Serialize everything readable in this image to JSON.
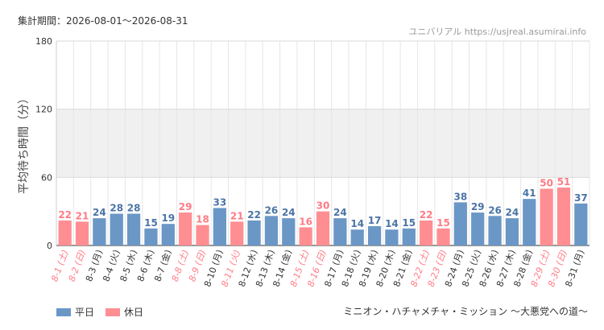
{
  "header": {
    "period": "集計期間：2026-08-01～2026-08-31",
    "site": "ユニバリアル  https://usjreal.asumirai.info"
  },
  "footer": {
    "attraction": "ミニオン・ハチャメチャ・ミッション ～大悪党への道～"
  },
  "colors": {
    "weekday": "#6a97c6",
    "holiday": "#ff8e93",
    "holiday_text": "#ff7b84",
    "weekday_text": "#4a74a6",
    "band": "#f0f0f0"
  },
  "chart_data": {
    "type": "bar",
    "ylabel": "平均待ち時間（分）",
    "ylim": [
      0,
      180
    ],
    "yticks": [
      0,
      60,
      120,
      180
    ],
    "band": [
      60,
      120
    ],
    "grid": true,
    "legend_position": "bottom-left",
    "categories": [
      "8-1 (土)",
      "8-2 (日)",
      "8-3 (月)",
      "8-4 (火)",
      "8-5 (水)",
      "8-6 (木)",
      "8-7 (金)",
      "8-8 (土)",
      "8-9 (日)",
      "8-10 (月)",
      "8-11 (火)",
      "8-12 (水)",
      "8-13 (木)",
      "8-14 (金)",
      "8-15 (土)",
      "8-16 (日)",
      "8-17 (月)",
      "8-18 (火)",
      "8-19 (水)",
      "8-20 (木)",
      "8-21 (金)",
      "8-22 (土)",
      "8-23 (日)",
      "8-24 (月)",
      "8-25 (火)",
      "8-26 (水)",
      "8-27 (木)",
      "8-28 (金)",
      "8-29 (土)",
      "8-30 (日)",
      "8-31 (月)"
    ],
    "values": [
      22,
      21,
      24,
      28,
      28,
      15,
      19,
      29,
      18,
      33,
      21,
      22,
      26,
      24,
      16,
      30,
      24,
      14,
      17,
      14,
      15,
      22,
      15,
      38,
      29,
      26,
      24,
      41,
      50,
      51,
      37
    ],
    "day_type": [
      "休日",
      "休日",
      "平日",
      "平日",
      "平日",
      "平日",
      "平日",
      "休日",
      "休日",
      "平日",
      "休日",
      "平日",
      "平日",
      "平日",
      "休日",
      "休日",
      "平日",
      "平日",
      "平日",
      "平日",
      "平日",
      "休日",
      "休日",
      "平日",
      "平日",
      "平日",
      "平日",
      "平日",
      "休日",
      "休日",
      "平日"
    ],
    "series": [
      {
        "name": "平日"
      },
      {
        "name": "休日"
      }
    ]
  }
}
